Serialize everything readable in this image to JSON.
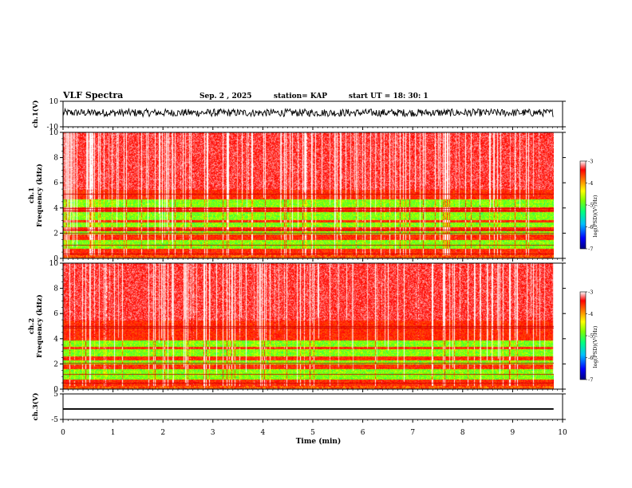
{
  "header": {
    "title": "VLF Spectra",
    "date": "Sep. 2 , 2025",
    "station": "station= KAP",
    "start_ut": "start UT =  18: 30: 1"
  },
  "colors": {
    "spectrum_stops": [
      "#000080",
      "#0000ff",
      "#00bfff",
      "#00ff80",
      "#80ff00",
      "#ffff00",
      "#ff8000",
      "#ff0000",
      "#ffffff"
    ],
    "trace": "#000000"
  },
  "chart_data": [
    {
      "id": "ch1-waveform",
      "type": "line",
      "ylabel": "ch.1(V)",
      "ylim": [
        -10,
        10
      ],
      "y_ticks": [
        "10",
        "-10"
      ],
      "x_range": [
        0,
        10
      ],
      "noise_band": [
        -2,
        4
      ],
      "data_end_min": 9.82
    },
    {
      "id": "ch1-spectrogram",
      "type": "heatmap",
      "ylabel": "ch.1\nFrequency  (kHz)",
      "ylim": [
        0,
        10
      ],
      "y_ticks": [
        "0",
        "2",
        "4",
        "6",
        "8",
        "10"
      ],
      "x_range": [
        0,
        10
      ],
      "data_end_min": 9.82,
      "quiet_bands_khz": [
        [
          0.8,
          1.5
        ],
        [
          1.9,
          2.2
        ],
        [
          2.5,
          2.9
        ],
        [
          3.1,
          3.7
        ],
        [
          4.1,
          4.7
        ]
      ],
      "tone_lines_khz": [
        0.4,
        1.1,
        2.0,
        2.3,
        3.8,
        4.0,
        5.1
      ],
      "colorbar": {
        "range": [
          -7,
          -3
        ],
        "ticks": [
          "-3",
          "-4",
          "-5",
          "-6",
          "-7"
        ],
        "label": "log(PSD)(V²/Hz)"
      }
    },
    {
      "id": "ch2-spectrogram",
      "type": "heatmap",
      "ylabel": "ch.2\nFrequency  (kHz)",
      "ylim": [
        0,
        10
      ],
      "y_ticks": [
        "0",
        "2",
        "4",
        "6",
        "8",
        "10"
      ],
      "x_range": [
        0,
        10
      ],
      "data_end_min": 9.82,
      "quiet_bands_khz": [
        [
          0.8,
          1.6
        ],
        [
          2.0,
          2.3
        ],
        [
          2.6,
          3.2
        ],
        [
          3.4,
          3.9
        ]
      ],
      "tone_lines_khz": [
        0.5,
        1.2,
        2.1,
        4.9,
        5.0
      ],
      "colorbar": {
        "range": [
          -7,
          -3
        ],
        "ticks": [
          "-3",
          "-4",
          "-5",
          "-6",
          "-7"
        ],
        "label": "log(PSD)(V²/Hz)"
      }
    },
    {
      "id": "ch3-waveform",
      "type": "line",
      "ylabel": "ch.3(V)",
      "ylim": [
        -5,
        5
      ],
      "y_ticks": [
        "5",
        "-5"
      ],
      "x_range": [
        0,
        10
      ],
      "level_band": [
        -1.2,
        -0.6
      ],
      "data_end_min": 9.82
    }
  ],
  "x_axis": {
    "label": "Time  (min)",
    "ticks": [
      "0",
      "1",
      "2",
      "3",
      "4",
      "5",
      "6",
      "7",
      "8",
      "9",
      "10"
    ]
  }
}
